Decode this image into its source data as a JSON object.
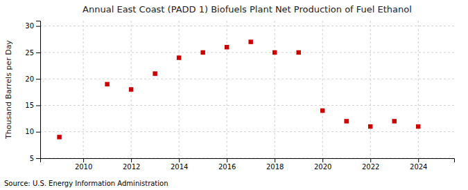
{
  "chart_data": {
    "type": "scatter",
    "title": "Annual East Coast (PADD 1) Biofuels Plant Net Production of Fuel Ethanol",
    "ylabel": "Thousand Barrels per Day",
    "source": "Source: U.S. Energy Information Administration",
    "x": [
      2009,
      2011,
      2012,
      2013,
      2014,
      2015,
      2016,
      2017,
      2018,
      2019,
      2020,
      2021,
      2022,
      2023,
      2024
    ],
    "values": [
      9.0,
      19.0,
      18.0,
      21.0,
      24.0,
      25.0,
      26.0,
      27.0,
      25.0,
      25.0,
      14.0,
      12.0,
      11.0,
      12.0,
      11.0
    ],
    "color": "#cc0000",
    "marker": "square",
    "xlim": [
      2008.2,
      2025.5
    ],
    "ylim": [
      5,
      31
    ],
    "xticks": [
      2010,
      2012,
      2014,
      2016,
      2018,
      2020,
      2022,
      2024
    ],
    "yticks": [
      5,
      10,
      15,
      20,
      25,
      30
    ],
    "grid": true
  }
}
